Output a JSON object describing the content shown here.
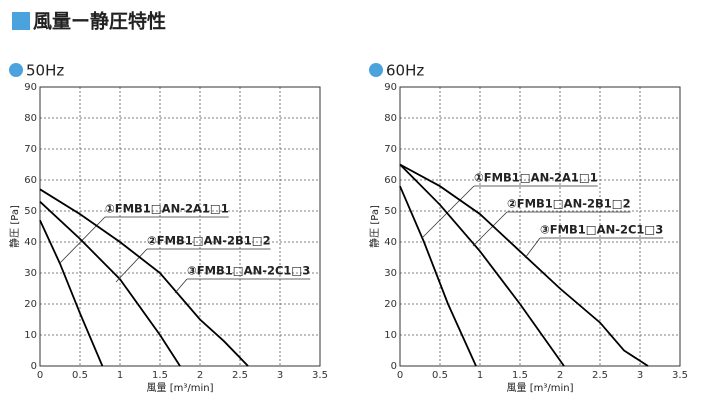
{
  "title": "風量ー静圧特性",
  "chart_data": [
    {
      "type": "line",
      "title": "50Hz",
      "xlabel": "風量 [m³/min]",
      "ylabel": "静圧 [Pa]",
      "xlim": [
        0,
        3.5
      ],
      "ylim": [
        0,
        90
      ],
      "xticks": [
        0,
        0.5,
        1,
        1.5,
        2,
        2.5,
        3,
        3.5
      ],
      "yticks": [
        0,
        10,
        20,
        30,
        40,
        50,
        60,
        70,
        80,
        90
      ],
      "grid": true,
      "series": [
        {
          "name": "①FMB1□AN-2A1□1",
          "color": "#000000",
          "x": [
            0,
            0.25,
            0.5,
            0.78
          ],
          "values": [
            47,
            33,
            17,
            0
          ]
        },
        {
          "name": "②FMB1□AN-2B1□2",
          "color": "#000000",
          "x": [
            0,
            0.5,
            1,
            1.5,
            1.75
          ],
          "values": [
            53,
            41,
            28,
            10,
            0
          ]
        },
        {
          "name": "③FMB1□AN-2C1□3",
          "color": "#000000",
          "x": [
            0,
            0.5,
            1,
            1.5,
            2,
            2.3,
            2.6
          ],
          "values": [
            57,
            49,
            40,
            30,
            15,
            8,
            0
          ]
        }
      ]
    },
    {
      "type": "line",
      "title": "60Hz",
      "xlabel": "風量 [m³/min]",
      "ylabel": "静圧 [Pa]",
      "xlim": [
        0,
        3.5
      ],
      "ylim": [
        0,
        90
      ],
      "xticks": [
        0,
        0.5,
        1,
        1.5,
        2,
        2.5,
        3,
        3.5
      ],
      "yticks": [
        0,
        10,
        20,
        30,
        40,
        50,
        60,
        70,
        80,
        90
      ],
      "grid": true,
      "series": [
        {
          "name": "①FMB1□AN-2A1□1",
          "color": "#000000",
          "x": [
            0,
            0.3,
            0.6,
            0.95
          ],
          "values": [
            58,
            40,
            20,
            0
          ]
        },
        {
          "name": "②FMB1□AN-2B1□2",
          "color": "#000000",
          "x": [
            0,
            0.5,
            1,
            1.5,
            2.05
          ],
          "values": [
            65,
            52,
            37,
            20,
            0
          ]
        },
        {
          "name": "③FMB1□AN-2C1□3",
          "color": "#000000",
          "x": [
            0,
            0.5,
            1,
            1.5,
            2,
            2.5,
            2.8,
            3.1
          ],
          "values": [
            65,
            58,
            49,
            37,
            25,
            14,
            5,
            0
          ]
        }
      ]
    }
  ]
}
